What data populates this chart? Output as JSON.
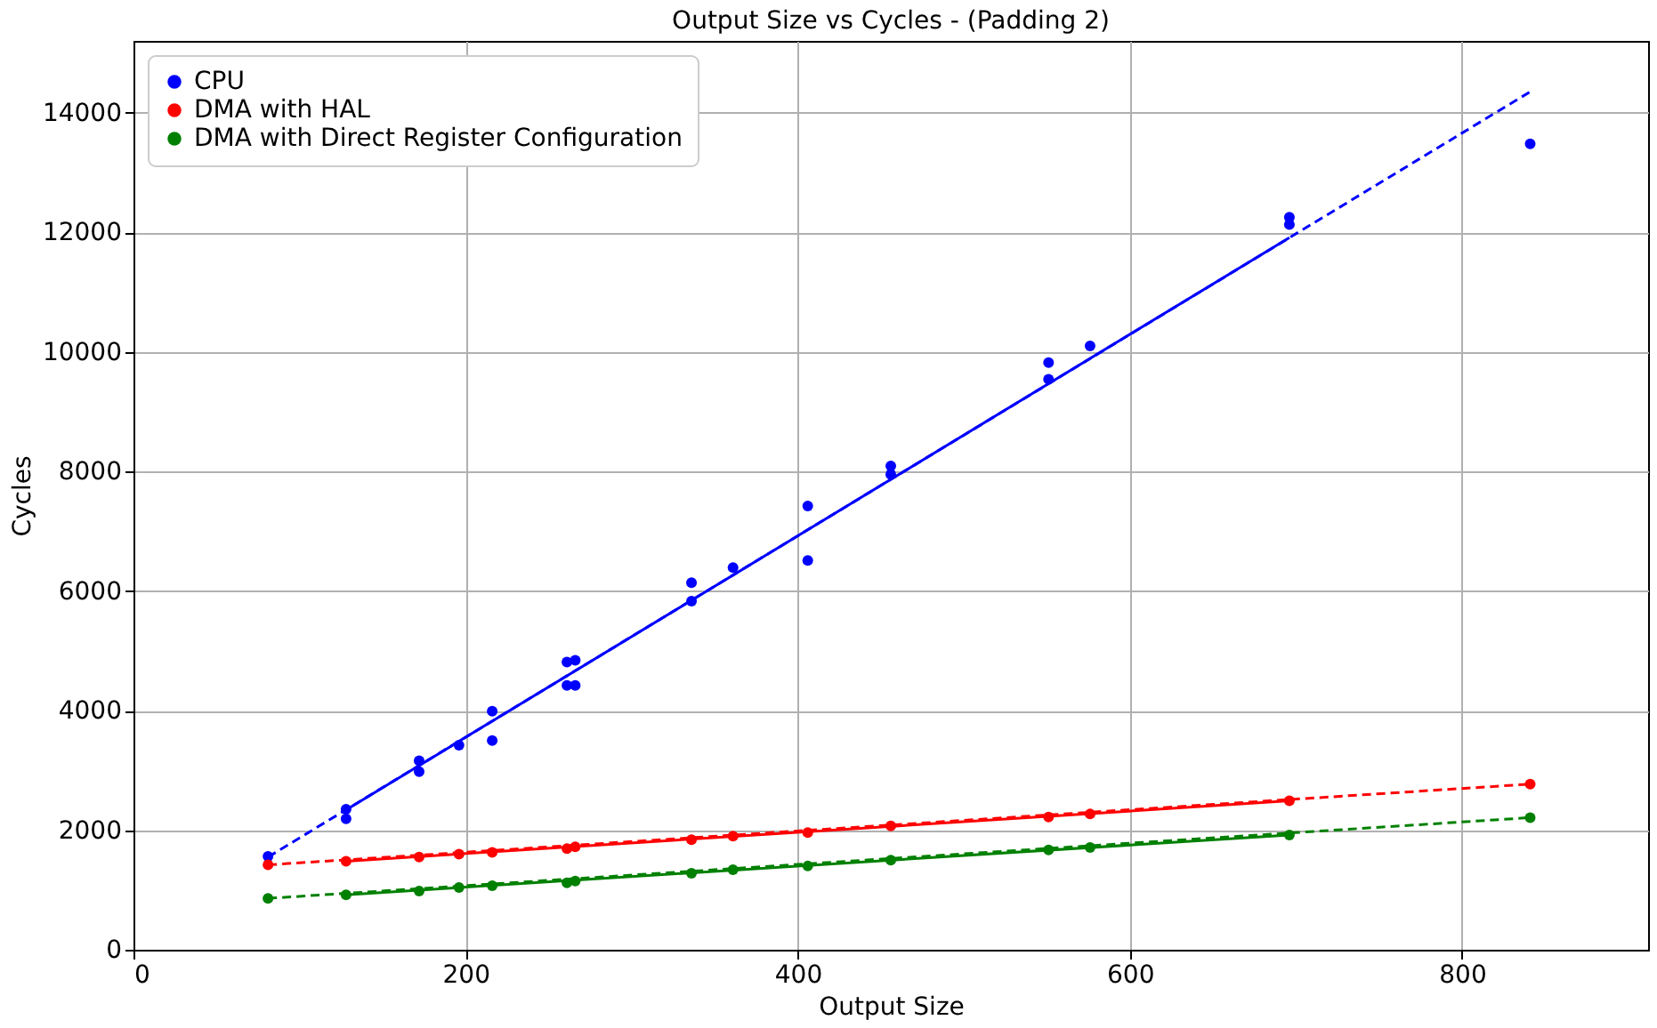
{
  "chart_data": {
    "type": "scatter",
    "title": "Output Size vs Cycles - (Padding 2)",
    "xlabel": "Output Size",
    "ylabel": "Cycles",
    "xlim": [
      0,
      912
    ],
    "ylim": [
      0,
      15200
    ],
    "xticks": [
      0,
      200,
      400,
      600,
      800
    ],
    "yticks": [
      0,
      2000,
      4000,
      6000,
      8000,
      10000,
      12000,
      14000
    ],
    "grid": true,
    "legend": "top left",
    "marker": "circle",
    "series": [
      {
        "name": "CPU",
        "color": "#0000ff",
        "x": [
          81,
          128,
          128,
          172,
          172,
          196,
          216,
          216,
          261,
          261,
          266,
          266,
          336,
          336,
          361,
          406,
          406,
          456,
          456,
          551,
          551,
          576,
          696,
          696,
          841
        ],
        "values": [
          1560,
          2350,
          2190,
          3160,
          2980,
          3420,
          3990,
          3500,
          4810,
          4420,
          4840,
          4420,
          6140,
          5830,
          6390,
          7420,
          6510,
          8090,
          7950,
          9820,
          9540,
          10100,
          12250,
          12130,
          13480
        ]
      },
      {
        "name": "DMA with HAL",
        "color": "#ff0000",
        "x": [
          81,
          128,
          172,
          196,
          216,
          261,
          266,
          336,
          361,
          406,
          456,
          551,
          576,
          696,
          841
        ],
        "values": [
          1420,
          1480,
          1550,
          1600,
          1630,
          1690,
          1720,
          1840,
          1900,
          1960,
          2070,
          2220,
          2270,
          2490,
          2770
        ]
      },
      {
        "name": "DMA with Direct Register Configuration",
        "color": "#008000",
        "x": [
          81,
          128,
          172,
          196,
          216,
          261,
          266,
          336,
          361,
          406,
          456,
          551,
          576,
          696,
          841
        ],
        "values": [
          860,
          920,
          980,
          1040,
          1070,
          1120,
          1150,
          1280,
          1340,
          1400,
          1500,
          1670,
          1710,
          1920,
          2210
        ]
      },
      {
        "type": "line",
        "color": "#0000ff",
        "line_style": "dashed",
        "marker": "none",
        "x": [
          81,
          841
        ],
        "values": [
          1550,
          14350
        ]
      },
      {
        "type": "line",
        "color": "#0000ff",
        "line_style": "solid",
        "marker": "none",
        "x": [
          128,
          696
        ],
        "values": [
          2340,
          11910
        ]
      },
      {
        "type": "line",
        "color": "#ff0000",
        "line_style": "dashed",
        "marker": "none",
        "x": [
          81,
          841
        ],
        "values": [
          1420,
          2770
        ]
      },
      {
        "type": "line",
        "color": "#ff0000",
        "line_style": "solid",
        "marker": "none",
        "x": [
          128,
          696
        ],
        "values": [
          1480,
          2490
        ]
      },
      {
        "type": "line",
        "color": "#008000",
        "line_style": "dashed",
        "marker": "none",
        "x": [
          81,
          841
        ],
        "values": [
          860,
          2210
        ]
      },
      {
        "type": "line",
        "color": "#008000",
        "line_style": "solid",
        "marker": "none",
        "x": [
          128,
          696
        ],
        "values": [
          920,
          1920
        ]
      }
    ]
  }
}
